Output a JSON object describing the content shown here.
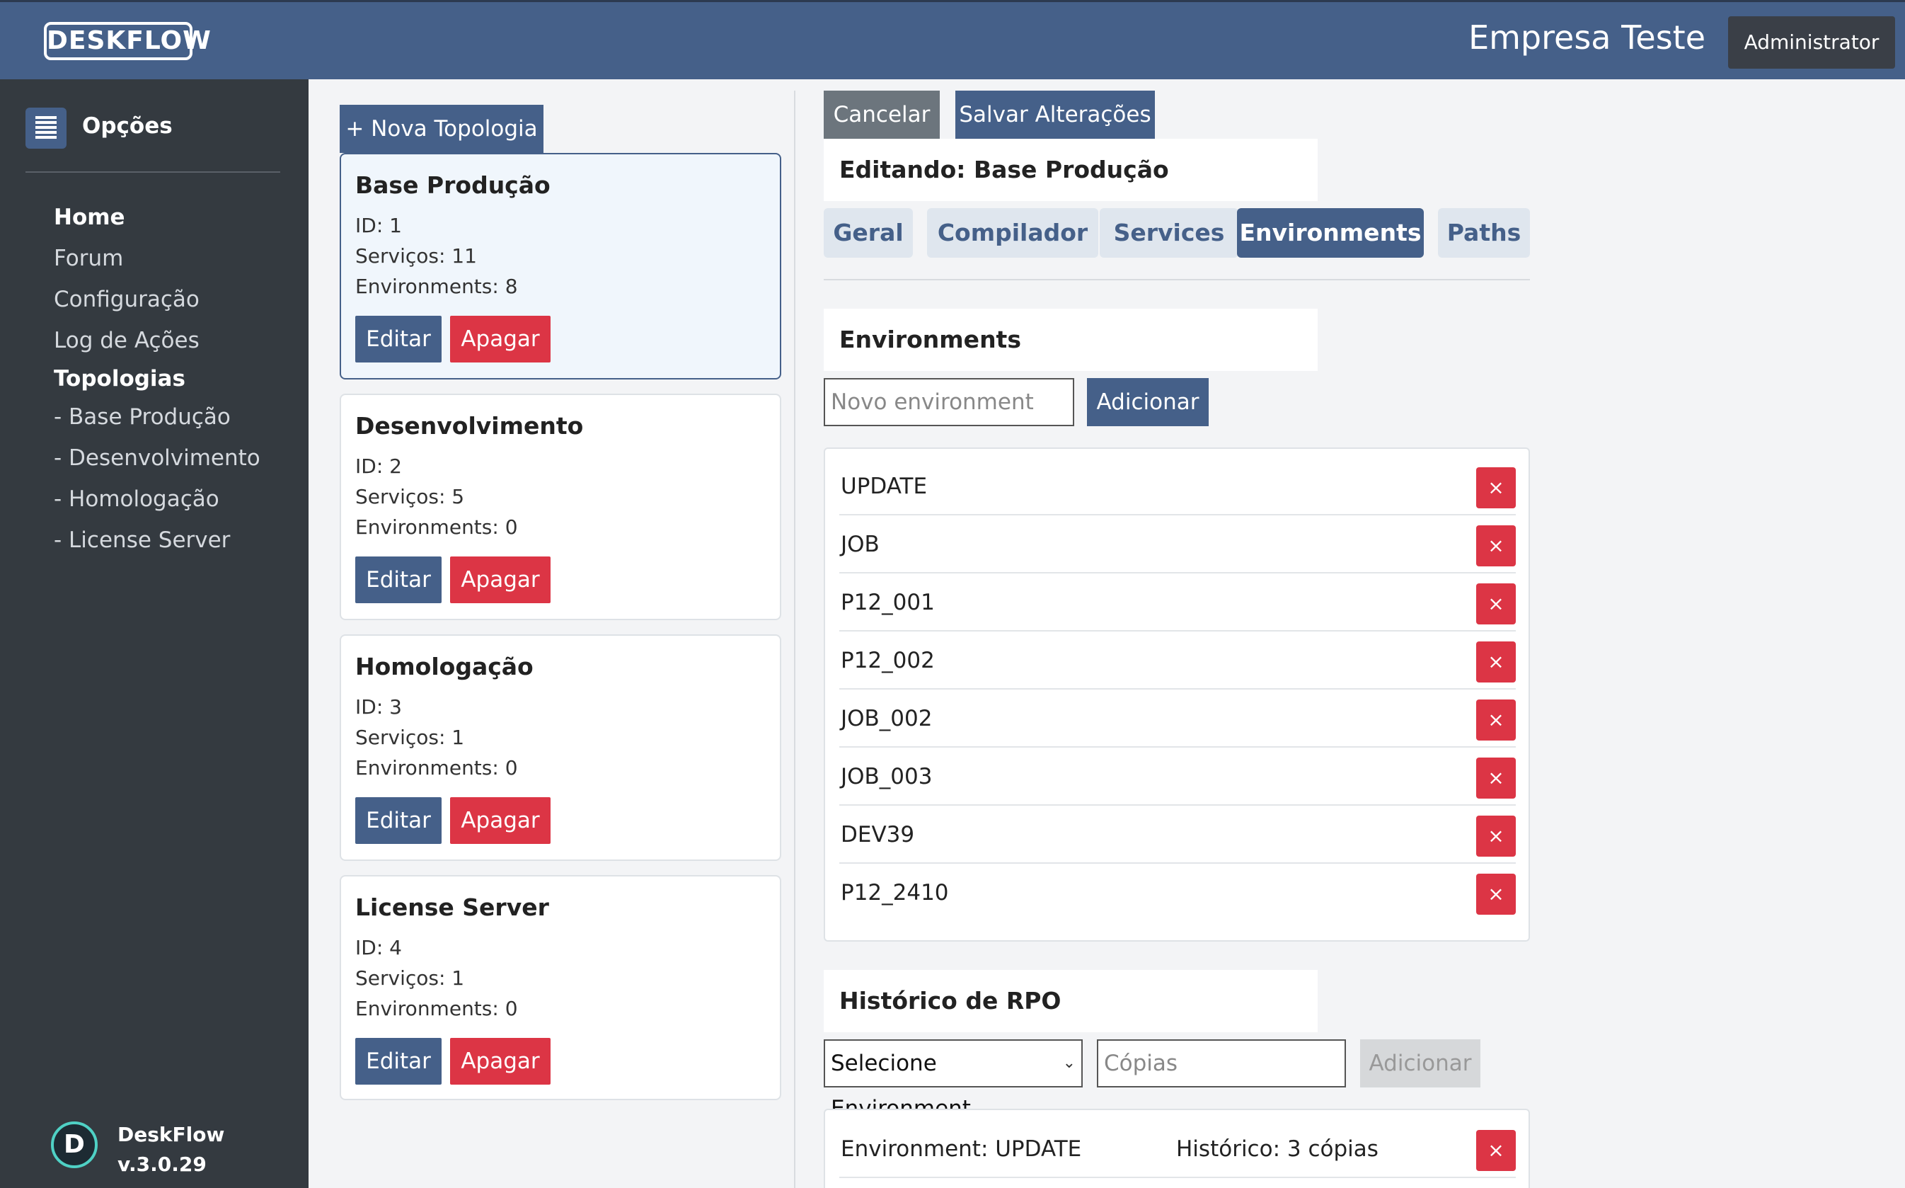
{
  "header": {
    "logo_text": "DESKFLOW",
    "company": "Empresa Teste",
    "user_button": "Administrator"
  },
  "sidebar": {
    "title": "Opções",
    "nav": [
      {
        "label": "Home"
      },
      {
        "label": "Forum"
      },
      {
        "label": "Configuração"
      },
      {
        "label": "Log de Ações"
      },
      {
        "label": "Topologias"
      }
    ],
    "sub_items": [
      {
        "label": "- Base Produção"
      },
      {
        "label": "- Desenvolvimento"
      },
      {
        "label": "- Homologação"
      },
      {
        "label": "- License Server"
      }
    ],
    "brand": {
      "name": "DeskFlow",
      "version": "v.3.0.29"
    }
  },
  "topologies": {
    "new_button": "+ Nova Topologia",
    "edit_label": "Editar",
    "delete_label": "Apagar",
    "cards": [
      {
        "name": "Base Produção",
        "id": "ID: 1",
        "services": "Serviços: 11",
        "environments": "Environments: 8"
      },
      {
        "name": "Desenvolvimento",
        "id": "ID: 2",
        "services": "Serviços: 5",
        "environments": "Environments: 0"
      },
      {
        "name": "Homologação",
        "id": "ID: 3",
        "services": "Serviços: 1",
        "environments": "Environments: 0"
      },
      {
        "name": "License Server",
        "id": "ID: 4",
        "services": "Serviços: 1",
        "environments": "Environments: 0"
      }
    ]
  },
  "editor": {
    "cancel_label": "Cancelar",
    "save_label": "Salvar Alterações",
    "editing_title": "Editando: Base Produção",
    "tabs": [
      "Geral",
      "Compilador",
      "Services",
      "Environments",
      "Paths"
    ],
    "active_tab": "Environments",
    "environments": {
      "section_title": "Environments",
      "input_placeholder": "Novo environment",
      "add_label": "Adicionar",
      "remove_symbol": "×",
      "items": [
        "UPDATE",
        "JOB",
        "P12_001",
        "P12_002",
        "JOB_002",
        "JOB_003",
        "DEV39",
        "P12_2410"
      ]
    },
    "rpo_history": {
      "section_title": "Histórico de RPO",
      "select_value": "Selecione Environment",
      "copies_placeholder": "Cópias",
      "add_label": "Adicionar",
      "rows": [
        {
          "environment": "Environment: UPDATE",
          "history": "Histórico: 3 cópias"
        }
      ]
    }
  },
  "colors": {
    "header_bg": "#456089",
    "sidebar_bg": "#343a40",
    "primary": "#456089",
    "danger": "#dc3545",
    "secondary": "#6c757d"
  }
}
